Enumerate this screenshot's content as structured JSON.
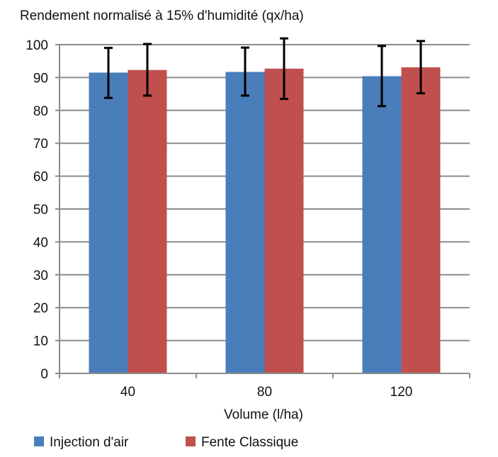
{
  "chart_data": {
    "type": "bar",
    "title": "Rendement normalisé à 15% d'humidité (qx/ha)",
    "xlabel": "Volume (l/ha)",
    "ylabel": "",
    "categories": [
      "40",
      "80",
      "120"
    ],
    "ylim": [
      0,
      100
    ],
    "yticks": [
      0,
      10,
      20,
      30,
      40,
      50,
      60,
      70,
      80,
      90,
      100
    ],
    "grid": true,
    "legend_position": "bottom",
    "series": [
      {
        "name": "Injection d'air",
        "color": "#4a7ebb",
        "values": [
          91.5,
          91.7,
          90.4
        ],
        "error_low": [
          83.8,
          84.5,
          81.3
        ],
        "error_high": [
          99.0,
          99.1,
          99.6
        ]
      },
      {
        "name": "Fente Classique",
        "color": "#c0504d",
        "values": [
          92.3,
          92.7,
          93.1
        ],
        "error_low": [
          84.5,
          83.5,
          85.2
        ],
        "error_high": [
          100.2,
          101.9,
          101.1
        ]
      }
    ]
  }
}
